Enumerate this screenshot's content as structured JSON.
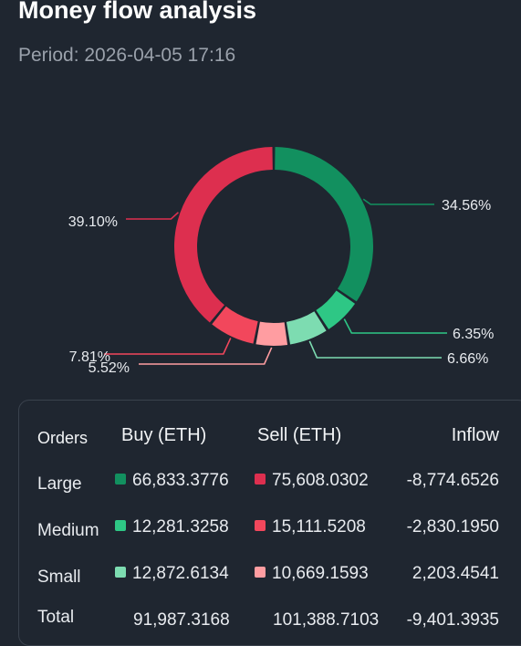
{
  "header": {
    "title": "Money flow analysis",
    "period": "Period: 2026-04-05 17:16"
  },
  "chart_data": {
    "type": "pie",
    "donut": true,
    "slices": [
      {
        "label": "34.56%",
        "value": 34.56,
        "color": "#12905f"
      },
      {
        "label": "6.35%",
        "value": 6.35,
        "color": "#2ec785"
      },
      {
        "label": "6.66%",
        "value": 6.66,
        "color": "#7ddcb1"
      },
      {
        "label": "5.52%",
        "value": 5.52,
        "color": "#ff9da1"
      },
      {
        "label": "7.81%",
        "value": 7.81,
        "color": "#f2475c"
      },
      {
        "label": "39.10%",
        "value": 39.1,
        "color": "#dd2f4f"
      }
    ]
  },
  "table": {
    "headers": {
      "orders": "Orders",
      "buy": "Buy (ETH)",
      "sell": "Sell (ETH)",
      "inflow": "Inflow"
    },
    "rows": [
      {
        "label": "Large",
        "buy": "66,833.3776",
        "sell": "75,608.0302",
        "inflow": "-8,774.6526",
        "buy_color": "#12905f",
        "sell_color": "#dd2f4f"
      },
      {
        "label": "Medium",
        "buy": "12,281.3258",
        "sell": "15,111.5208",
        "inflow": "-2,830.1950",
        "buy_color": "#2ec785",
        "sell_color": "#f2475c"
      },
      {
        "label": "Small",
        "buy": "12,872.6134",
        "sell": "10,669.1593",
        "inflow": "2,203.4541",
        "buy_color": "#7ddcb1",
        "sell_color": "#ff9da1"
      }
    ],
    "total": {
      "label": "Total",
      "buy": "91,987.3168",
      "sell": "101,388.7103",
      "inflow": "-9,401.3935"
    }
  }
}
